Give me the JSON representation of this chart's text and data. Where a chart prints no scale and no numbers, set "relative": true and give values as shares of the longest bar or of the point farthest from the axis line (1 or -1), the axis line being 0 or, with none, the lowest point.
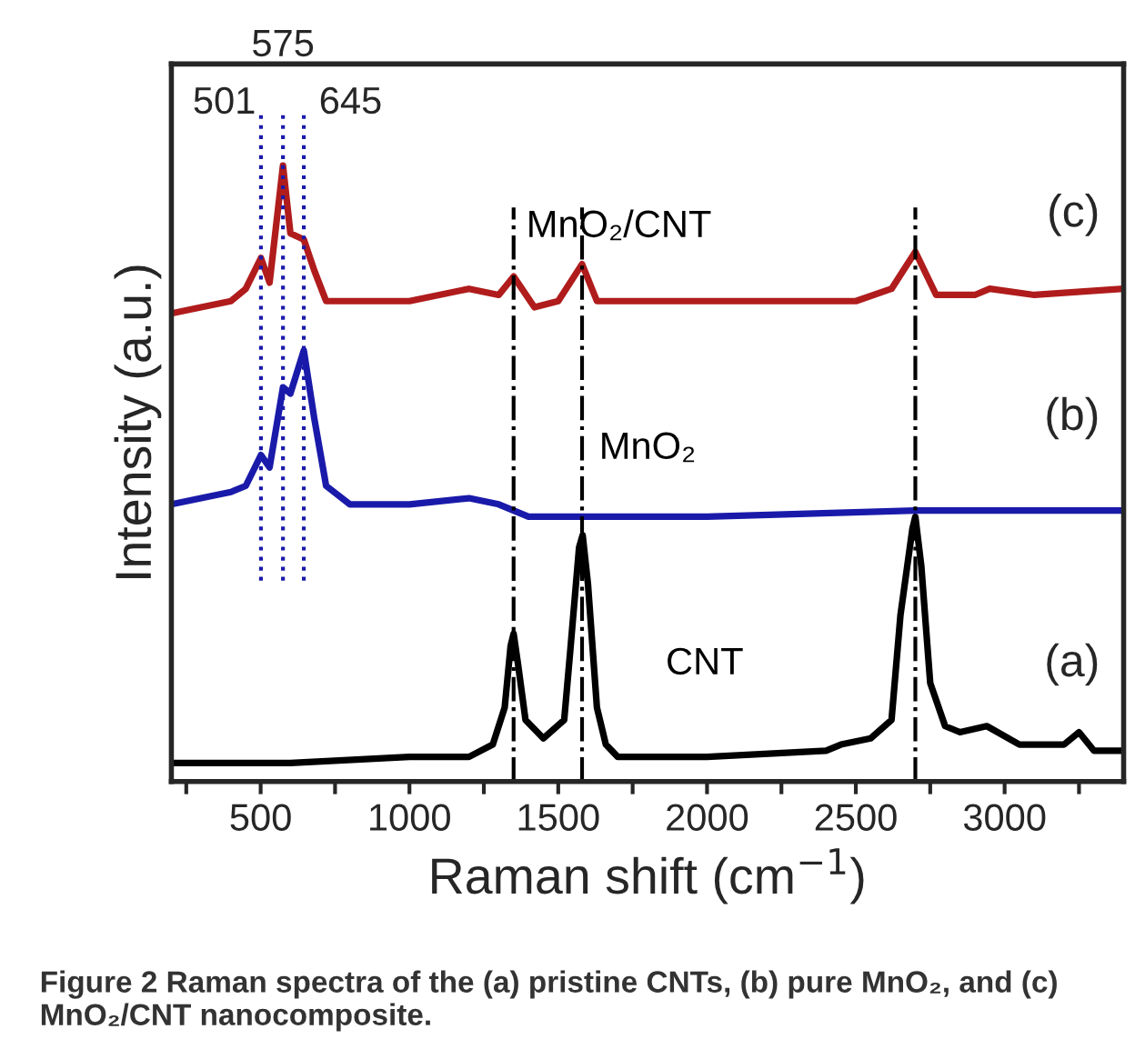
{
  "chart_data": {
    "type": "line",
    "relative": true,
    "xlabel": "Raman shift (cm$^{−1}$)",
    "ylabel": "Intensity (a.u.)",
    "xlim": [
      200,
      3400
    ],
    "xticks": [
      {
        "value": 250,
        "label": null
      },
      500,
      {
        "value": 750,
        "label": null
      },
      1000,
      {
        "value": 1250,
        "label": null
      },
      1500,
      {
        "value": 1750,
        "label": null
      },
      2000,
      {
        "value": 2250,
        "label": null
      },
      2500,
      {
        "value": 2750,
        "label": null
      },
      3000,
      {
        "value": 3250,
        "label": null
      }
    ],
    "tick_labels": "x",
    "grid": false,
    "legend": false,
    "marker": "none",
    "line_style": "solid",
    "series": [
      {
        "name": "CNT",
        "color": "#000000",
        "x": [
          200,
          600,
          1000,
          1200,
          1280,
          1320,
          1340,
          1350,
          1365,
          1390,
          1450,
          1520,
          1540,
          1570,
          1582,
          1600,
          1630,
          1660,
          1700,
          2000,
          2400,
          2450,
          2550,
          2620,
          2650,
          2690,
          2700,
          2720,
          2750,
          2800,
          2850,
          2940,
          3050,
          3200,
          3250,
          3300,
          3400
        ],
        "values": [
          0.03,
          0.03,
          0.04,
          0.04,
          0.06,
          0.12,
          0.22,
          0.24,
          0.19,
          0.1,
          0.07,
          0.1,
          0.21,
          0.38,
          0.4,
          0.32,
          0.12,
          0.06,
          0.04,
          0.04,
          0.05,
          0.06,
          0.07,
          0.1,
          0.27,
          0.41,
          0.43,
          0.35,
          0.16,
          0.09,
          0.08,
          0.09,
          0.06,
          0.06,
          0.08,
          0.05,
          0.05
        ]
      },
      {
        "name": "MnO₂",
        "color": "#1a1aaa",
        "x": [
          200,
          300,
          400,
          450,
          501,
          530,
          575,
          600,
          645,
          680,
          720,
          800,
          1000,
          1200,
          1300,
          1400,
          2000,
          2700,
          3400
        ],
        "values": [
          0.45,
          0.46,
          0.47,
          0.48,
          0.53,
          0.51,
          0.64,
          0.63,
          0.7,
          0.59,
          0.48,
          0.45,
          0.45,
          0.46,
          0.45,
          0.43,
          0.43,
          0.44,
          0.44
        ]
      },
      {
        "name": "MnO₂/CNT",
        "color": "#b01c1c",
        "x": [
          200,
          300,
          400,
          450,
          501,
          530,
          575,
          600,
          645,
          680,
          720,
          800,
          1000,
          1200,
          1300,
          1350,
          1420,
          1500,
          1580,
          1630,
          2000,
          2500,
          2620,
          2700,
          2770,
          2900,
          2950,
          3100,
          3400
        ],
        "values": [
          0.76,
          0.77,
          0.78,
          0.8,
          0.85,
          0.81,
          1.0,
          0.89,
          0.88,
          0.83,
          0.78,
          0.78,
          0.78,
          0.8,
          0.79,
          0.82,
          0.77,
          0.78,
          0.84,
          0.78,
          0.78,
          0.78,
          0.8,
          0.86,
          0.79,
          0.79,
          0.8,
          0.79,
          0.8
        ]
      }
    ],
    "ref_lines": [
      {
        "axis": "x",
        "value": 501,
        "label": "501",
        "color": "#1a1aaa",
        "line_style": "dotted"
      },
      {
        "axis": "x",
        "value": 575,
        "label": "575",
        "color": "#1a1aaa",
        "line_style": "dotted"
      },
      {
        "axis": "x",
        "value": 645,
        "label": "645",
        "color": "#1a1aaa",
        "line_style": "dotted"
      },
      {
        "axis": "x",
        "value": 1350,
        "label": null,
        "color": "#000000",
        "line_style": "dashdot"
      },
      {
        "axis": "x",
        "value": 1580,
        "label": null,
        "color": "#000000",
        "line_style": "dashdot"
      },
      {
        "axis": "x",
        "value": 2700,
        "label": null,
        "color": "#000000",
        "line_style": "dashdot"
      }
    ],
    "annotations": [
      "(c)",
      "(b)",
      "(a)",
      "Figure 2 Raman spectra of the (a) pristine CNTs, (b) pure MnO₂, and (c) MnO₂/CNT nanocomposite."
    ]
  }
}
